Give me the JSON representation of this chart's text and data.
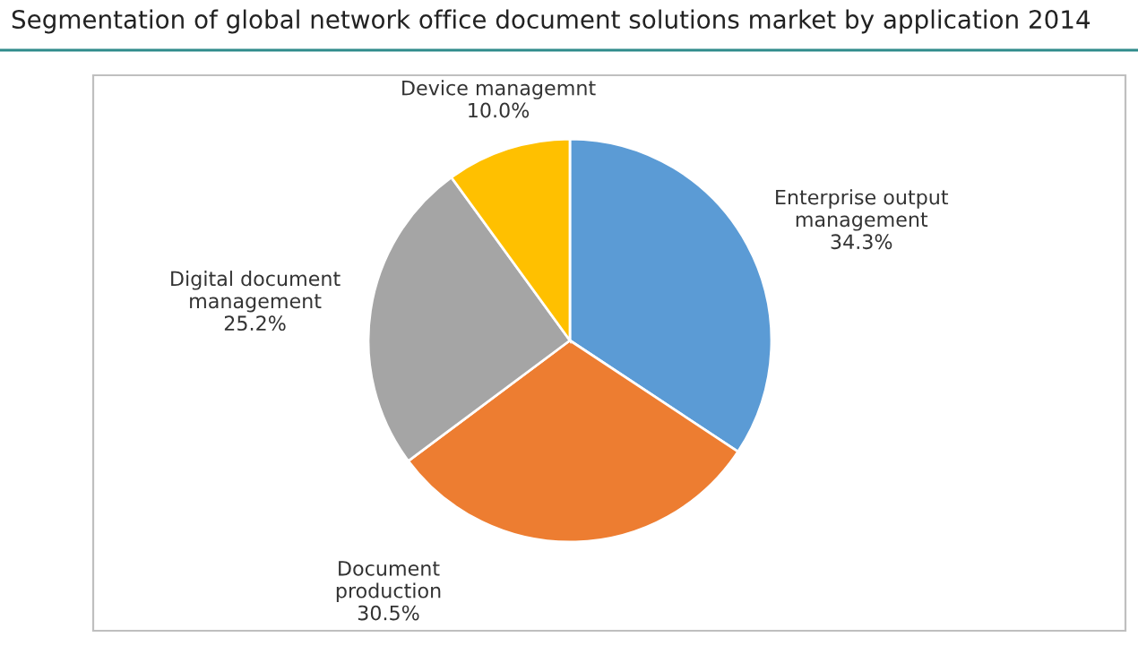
{
  "chart_data": {
    "type": "pie",
    "title": "Segmentation of global network office document solutions market by application 2014",
    "categories": [
      "Enterprise output\nmanagement",
      "Document\nproduction",
      "Digital document\nmanagement",
      "Device managemnt"
    ],
    "values": [
      34.3,
      30.5,
      25.2,
      10.0
    ],
    "value_labels": [
      "34.3%",
      "30.5%",
      "25.2%",
      "10.0%"
    ],
    "colors": [
      "#5b9bd5",
      "#ed7d31",
      "#a5a5a5",
      "#ffc000"
    ]
  }
}
